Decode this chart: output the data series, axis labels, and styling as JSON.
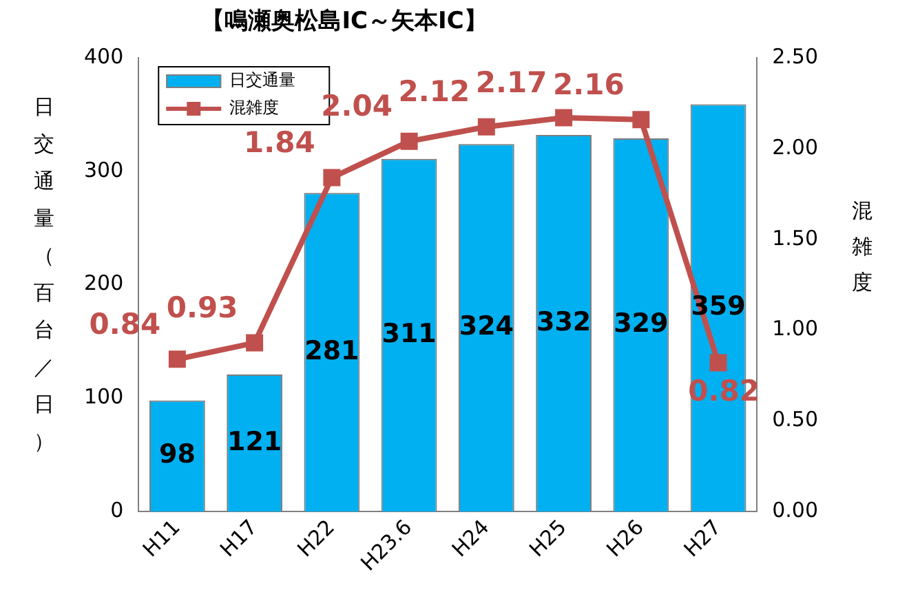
{
  "chart_data": {
    "type": "bar",
    "title": "【鳴瀬奥松島IC～矢本IC】",
    "ylabel": "日交通量（百台／日）",
    "y2label": "混雑度",
    "categories": [
      "H11",
      "H17",
      "H22",
      "H23.6",
      "H24",
      "H25",
      "H26",
      "H27"
    ],
    "series": [
      {
        "name": "日交通量",
        "color": "#00b0f0",
        "values": [
          98,
          121,
          281,
          311,
          324,
          332,
          329,
          359
        ]
      },
      {
        "name": "混雑度",
        "type": "line",
        "axis": "y2",
        "color": "#c0504d",
        "values": [
          0.84,
          0.93,
          1.84,
          2.04,
          2.12,
          2.17,
          2.16,
          0.82
        ]
      }
    ],
    "ylim": [
      0,
      400
    ],
    "yticks": [
      0,
      100,
      200,
      300,
      400
    ],
    "y2lim": [
      0,
      2.5
    ],
    "y2ticks": [
      {
        "value": 0,
        "label": "0.00"
      },
      {
        "value": 0.5,
        "label": "0.50"
      },
      {
        "value": 1,
        "label": "1.00"
      },
      {
        "value": 1.5,
        "label": "1.50"
      },
      {
        "value": 2,
        "label": "2.00"
      },
      {
        "value": 2.5,
        "label": "2.50"
      }
    ],
    "grid": false,
    "legend": "top left",
    "marker": "square",
    "line_style": "solid",
    "data_labels": true
  }
}
